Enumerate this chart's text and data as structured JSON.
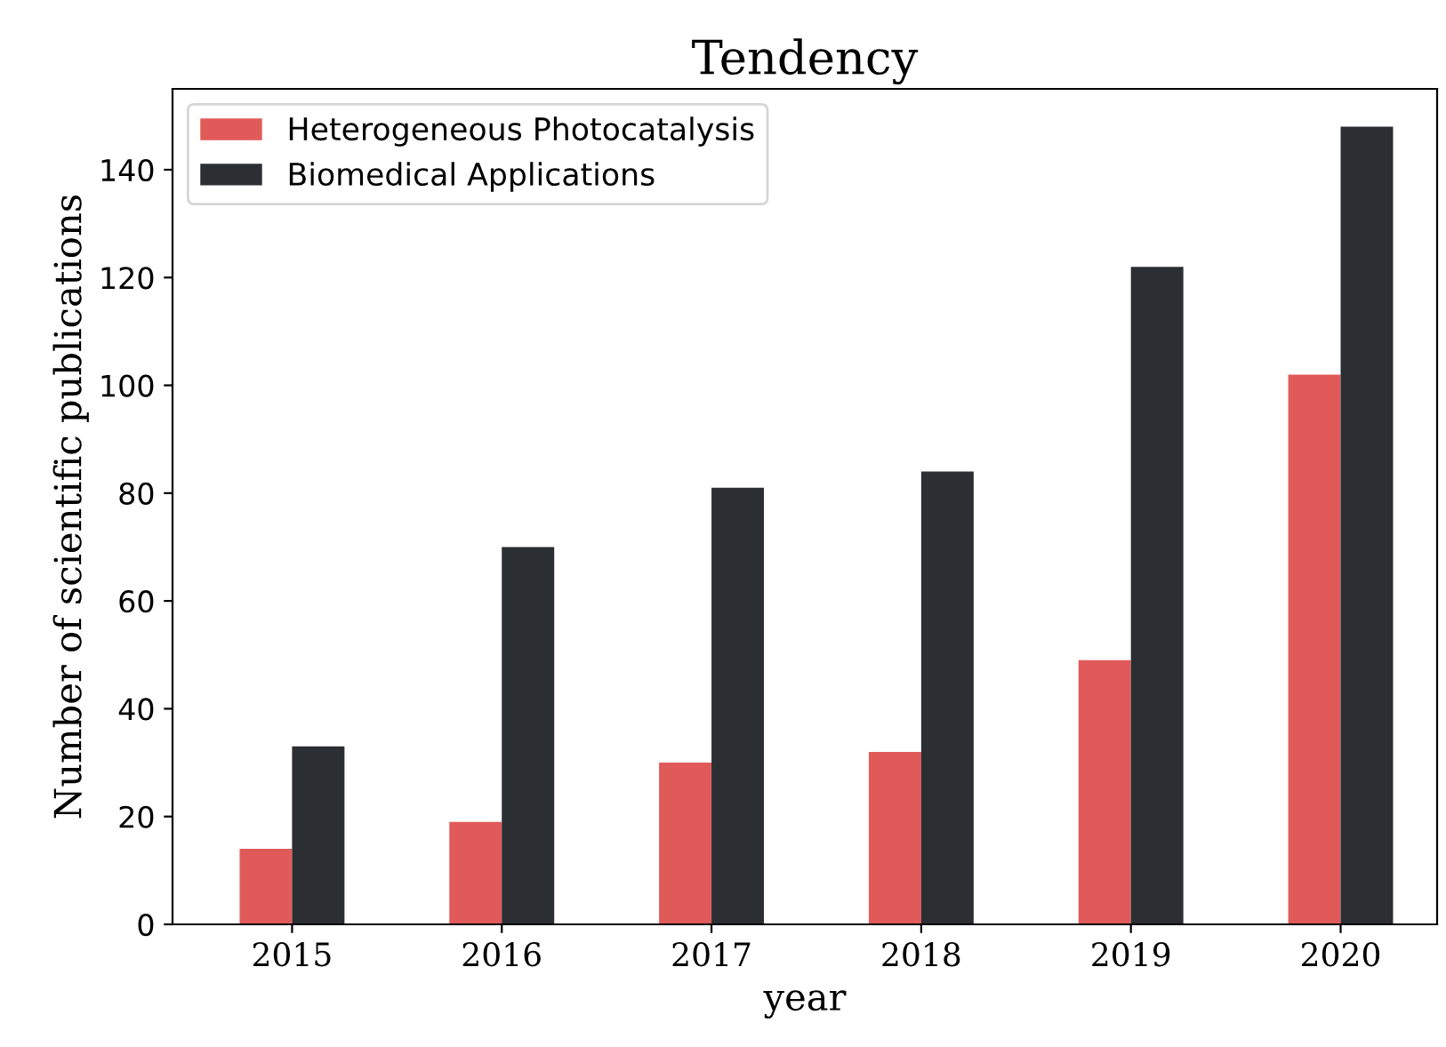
{
  "chart_data": {
    "type": "bar",
    "title": "Tendency",
    "xlabel": "year",
    "ylabel": "Number of scientific publications",
    "categories": [
      "2015",
      "2016",
      "2017",
      "2018",
      "2019",
      "2020"
    ],
    "series": [
      {
        "name": "Heterogeneous Photocatalysis",
        "color": "#e05a5a",
        "values": [
          14,
          19,
          30,
          32,
          49,
          102
        ]
      },
      {
        "name": "Biomedical Applications",
        "color": "#2b2e33",
        "values": [
          33,
          70,
          81,
          84,
          122,
          148
        ]
      }
    ],
    "ylim": [
      0,
      155
    ],
    "yticks": [
      0,
      20,
      40,
      60,
      80,
      100,
      120,
      140
    ],
    "grid": false,
    "legend": "top left"
  }
}
